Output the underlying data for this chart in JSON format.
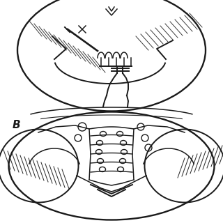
{
  "background_color": "#f5f5f5",
  "figure_width": 3.2,
  "figure_height": 3.2,
  "dpi": 100,
  "label_B": "B",
  "top_panel_bg": "#f0f0f0",
  "bottom_panel_bg": "#eeeeee",
  "line_color": "#1a1a1a",
  "light_line": "#888888",
  "hatch_color": "#444444"
}
